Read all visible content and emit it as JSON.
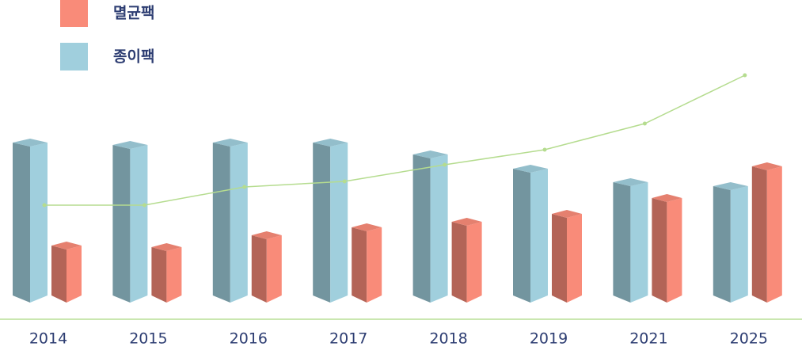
{
  "chart_data": {
    "type": "bar",
    "categories": [
      "2014",
      "2015",
      "2016",
      "2017",
      "2018",
      "2019",
      "2021",
      "2025"
    ],
    "series": [
      {
        "name": "멸균팩",
        "color": "#f98b79",
        "values": [
          70,
          68,
          83,
          93,
          100,
          110,
          130,
          170
        ]
      },
      {
        "name": "종이팩",
        "color": "#a0cfdd",
        "values": [
          200,
          197,
          200,
          200,
          185,
          167,
          150,
          145
        ]
      },
      {
        "type": "line",
        "color": "#b5dc8f",
        "values": [
          121,
          121,
          144,
          151,
          172,
          191,
          224,
          285
        ]
      }
    ],
    "ylim": [
      0,
      300
    ]
  }
}
